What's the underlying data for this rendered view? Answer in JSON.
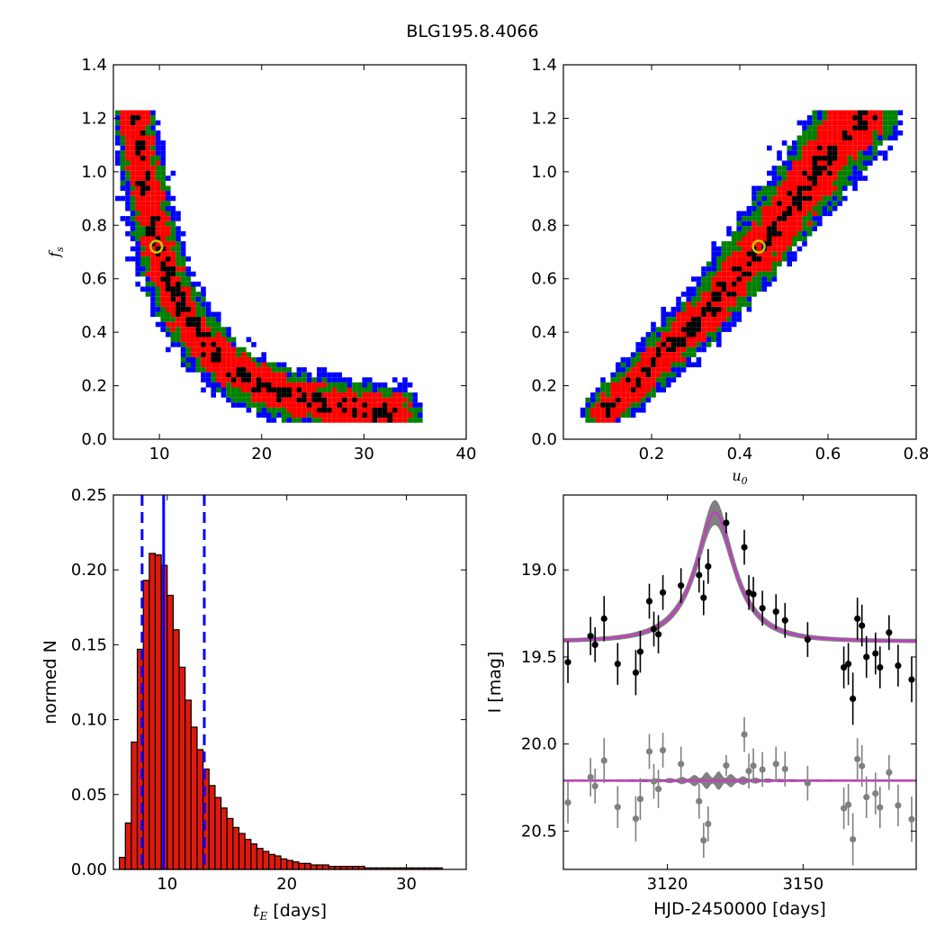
{
  "title": "BLG195.8.4066",
  "colors": {
    "one_sigma": "#000000",
    "two_sigma": "#ff0000",
    "three_sigma": "#008000",
    "outer": "#0000ff",
    "best_fit_marker": "#c8c800",
    "model": "#bf3fbf",
    "model_band": "#808080",
    "hist_bar": "#dd1a0f",
    "data_point": "#000000",
    "residual_point": "#808080",
    "median_line": "#0000ff"
  },
  "chart_data": [
    {
      "type": "heatmap",
      "title": "",
      "xlabel": "",
      "ylabel": "f_s",
      "xlim": [
        5.5,
        40
      ],
      "ylim": [
        0.0,
        1.4
      ],
      "xticks": [
        "10",
        "20",
        "30",
        "40"
      ],
      "yticks": [
        "0.0",
        "0.2",
        "0.4",
        "0.6",
        "0.8",
        "1.0",
        "1.2",
        "1.4"
      ],
      "levels": [
        "1 sigma (black)",
        "2 sigma (red)",
        "3 sigma (green)",
        "outer (blue)"
      ],
      "best_fit": {
        "x": 9.7,
        "y": 0.72
      },
      "ridge": [
        [
          7.5,
          1.22
        ],
        [
          8.2,
          1.05
        ],
        [
          9.0,
          0.88
        ],
        [
          9.8,
          0.72
        ],
        [
          11,
          0.58
        ],
        [
          12.5,
          0.46
        ],
        [
          14.5,
          0.35
        ],
        [
          17,
          0.26
        ],
        [
          20,
          0.2
        ],
        [
          24,
          0.15
        ],
        [
          28,
          0.12
        ],
        [
          33,
          0.1
        ]
      ]
    },
    {
      "type": "heatmap",
      "title": "",
      "xlabel": "u_0",
      "ylabel": "",
      "xlim": [
        0.0,
        0.8
      ],
      "ylim": [
        0.0,
        1.4
      ],
      "xticks": [
        "0.2",
        "0.4",
        "0.6",
        "0.8"
      ],
      "yticks": [
        "0.0",
        "0.2",
        "0.4",
        "0.6",
        "0.8",
        "1.0",
        "1.2",
        "1.4"
      ],
      "levels": [
        "1 sigma (black)",
        "2 sigma (red)",
        "3 sigma (green)",
        "outer (blue)"
      ],
      "best_fit": {
        "x": 0.443,
        "y": 0.72
      },
      "ridge": [
        [
          0.09,
          0.1
        ],
        [
          0.15,
          0.18
        ],
        [
          0.2,
          0.27
        ],
        [
          0.25,
          0.35
        ],
        [
          0.3,
          0.43
        ],
        [
          0.35,
          0.52
        ],
        [
          0.4,
          0.62
        ],
        [
          0.45,
          0.72
        ],
        [
          0.5,
          0.83
        ],
        [
          0.55,
          0.94
        ],
        [
          0.6,
          1.05
        ],
        [
          0.65,
          1.16
        ],
        [
          0.68,
          1.22
        ]
      ]
    },
    {
      "type": "bar",
      "title": "",
      "xlabel": "t_E  [days]",
      "ylabel": "normed N",
      "xlim": [
        5.5,
        35
      ],
      "ylim": [
        0.0,
        0.25
      ],
      "xticks": [
        "10",
        "20",
        "30"
      ],
      "yticks": [
        "0.00",
        "0.05",
        "0.10",
        "0.15",
        "0.20",
        "0.25"
      ],
      "bin_start": 6.0,
      "bin_width": 0.5,
      "values": [
        0.008,
        0.031,
        0.085,
        0.147,
        0.193,
        0.211,
        0.21,
        0.203,
        0.183,
        0.16,
        0.135,
        0.113,
        0.095,
        0.08,
        0.067,
        0.056,
        0.048,
        0.041,
        0.034,
        0.028,
        0.024,
        0.02,
        0.017,
        0.014,
        0.012,
        0.01,
        0.009,
        0.007,
        0.006,
        0.005,
        0.004,
        0.004,
        0.003,
        0.003,
        0.003,
        0.002,
        0.002,
        0.002,
        0.002,
        0.002,
        0.002,
        0.001,
        0.001,
        0.001,
        0.001,
        0.001,
        0.001,
        0.001,
        0.001,
        0.001,
        0.001,
        0.001,
        0.001,
        0.001
      ],
      "median": 9.7,
      "lower_bound": 7.9,
      "upper_bound": 13.1
    },
    {
      "type": "scatter",
      "title": "",
      "xlabel": "HJD-2450000 [days]",
      "ylabel": "I [mag]",
      "xlim": [
        3097,
        3175
      ],
      "ylim": [
        20.72,
        18.57
      ],
      "y_inverted": true,
      "xticks": [
        "3120",
        "3150"
      ],
      "yticks": [
        "19.0",
        "19.5",
        "20.0",
        "20.5"
      ],
      "model": {
        "t0": 3130.5,
        "tE": 9.7,
        "u0": 0.443,
        "baseline": 19.41,
        "peak": 18.67
      },
      "residual_offset": 20.21,
      "points": [
        {
          "t": 3098,
          "mag": 19.53,
          "err": 0.12
        },
        {
          "t": 3103,
          "mag": 19.38,
          "err": 0.11
        },
        {
          "t": 3104,
          "mag": 19.43,
          "err": 0.1
        },
        {
          "t": 3106,
          "mag": 19.28,
          "err": 0.13
        },
        {
          "t": 3109,
          "mag": 19.54,
          "err": 0.12
        },
        {
          "t": 3113,
          "mag": 19.59,
          "err": 0.13
        },
        {
          "t": 3114,
          "mag": 19.47,
          "err": 0.12
        },
        {
          "t": 3116,
          "mag": 19.18,
          "err": 0.1
        },
        {
          "t": 3117,
          "mag": 19.34,
          "err": 0.1
        },
        {
          "t": 3118,
          "mag": 19.37,
          "err": 0.11
        },
        {
          "t": 3119,
          "mag": 19.13,
          "err": 0.1
        },
        {
          "t": 3123,
          "mag": 19.09,
          "err": 0.1
        },
        {
          "t": 3127,
          "mag": 19.03,
          "err": 0.1
        },
        {
          "t": 3128,
          "mag": 19.16,
          "err": 0.1
        },
        {
          "t": 3129,
          "mag": 18.98,
          "err": 0.1
        },
        {
          "t": 3133,
          "mag": 18.73,
          "err": 0.06
        },
        {
          "t": 3137,
          "mag": 18.87,
          "err": 0.1
        },
        {
          "t": 3138,
          "mag": 19.13,
          "err": 0.1
        },
        {
          "t": 3139,
          "mag": 19.14,
          "err": 0.1
        },
        {
          "t": 3141,
          "mag": 19.22,
          "err": 0.1
        },
        {
          "t": 3144,
          "mag": 19.24,
          "err": 0.1
        },
        {
          "t": 3146,
          "mag": 19.29,
          "err": 0.1
        },
        {
          "t": 3151,
          "mag": 19.4,
          "err": 0.1
        },
        {
          "t": 3159,
          "mag": 19.56,
          "err": 0.12
        },
        {
          "t": 3160,
          "mag": 19.54,
          "err": 0.12
        },
        {
          "t": 3161,
          "mag": 19.74,
          "err": 0.15
        },
        {
          "t": 3162,
          "mag": 19.28,
          "err": 0.12
        },
        {
          "t": 3163,
          "mag": 19.32,
          "err": 0.12
        },
        {
          "t": 3164,
          "mag": 19.5,
          "err": 0.12
        },
        {
          "t": 3166,
          "mag": 19.48,
          "err": 0.12
        },
        {
          "t": 3167,
          "mag": 19.56,
          "err": 0.12
        },
        {
          "t": 3169,
          "mag": 19.36,
          "err": 0.1
        },
        {
          "t": 3171,
          "mag": 19.55,
          "err": 0.12
        },
        {
          "t": 3174,
          "mag": 19.63,
          "err": 0.13
        }
      ]
    }
  ]
}
